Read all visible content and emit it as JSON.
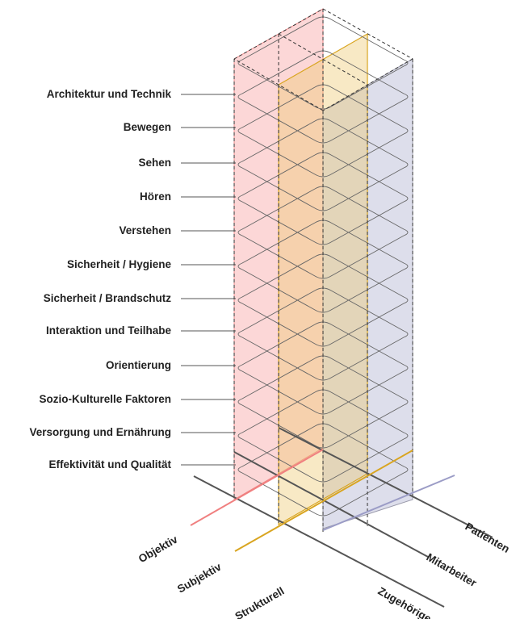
{
  "rows": [
    "Architektur und Technik",
    "Bewegen",
    "Sehen",
    "Hören",
    "Verstehen",
    "Sicherheit / Hygiene",
    "Sicherheit / Brandschutz",
    "Interaktion und Teilhabe",
    "Orientierung",
    "Sozio-Kulturelle Faktoren",
    "Versorgung und Ernährung",
    "Effektivität und Qualität"
  ],
  "left_axis": [
    "Objektiv",
    "Subjektiv",
    "Strukturell"
  ],
  "right_axis": [
    "Patienten",
    "Mitarbeiter",
    "Zugehörige"
  ],
  "colors": {
    "objektiv": "#f08080",
    "subjektiv": "#d9a520",
    "strukturell": "#9b9cc6",
    "patienten": "#9b9cc6",
    "axis_dark": "#555555"
  }
}
